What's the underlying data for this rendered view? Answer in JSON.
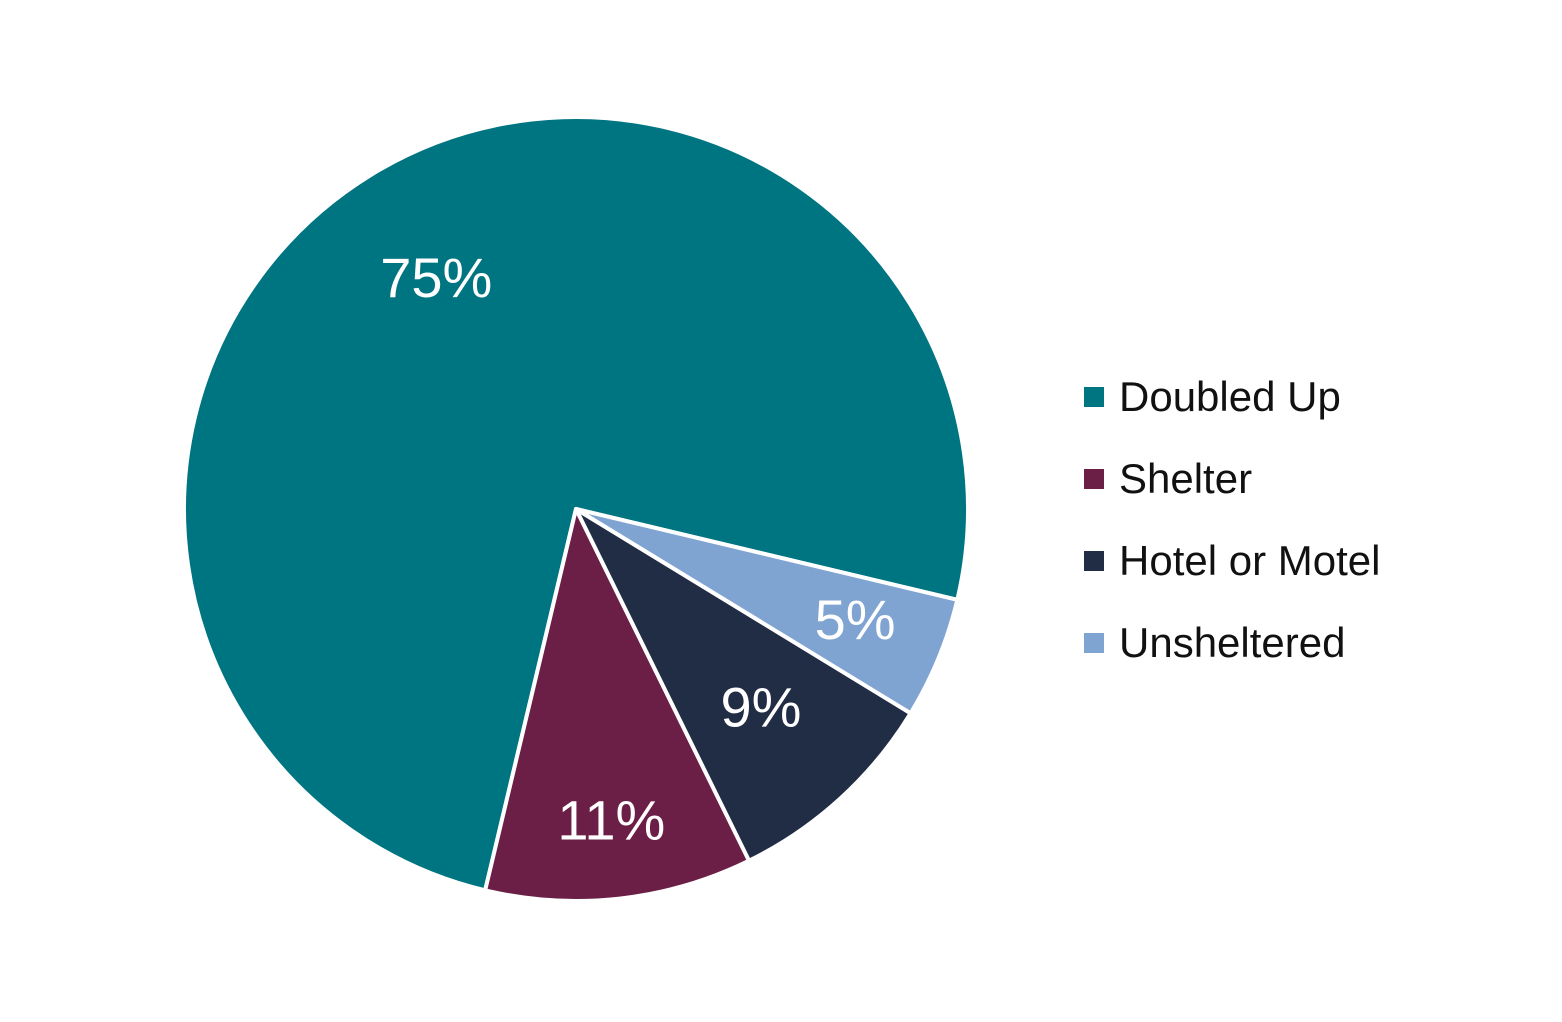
{
  "chart_data": {
    "type": "pie",
    "categories": [
      "Doubled Up",
      "Shelter",
      "Hotel or Motel",
      "Unsheltered"
    ],
    "values": [
      75,
      11,
      9,
      5
    ],
    "data_labels": [
      "75%",
      "11%",
      "9%",
      "5%"
    ],
    "colors": [
      "#007582",
      "#6b1f46",
      "#212c45",
      "#80a4d2"
    ],
    "label_color": "#ffffff",
    "legend_position": "right",
    "title": ""
  },
  "legend": {
    "items": [
      {
        "label": "Doubled Up",
        "color": "#007582"
      },
      {
        "label": "Shelter",
        "color": "#6b1f46"
      },
      {
        "label": "Hotel or Motel",
        "color": "#212c45"
      },
      {
        "label": "Unsheltered",
        "color": "#80a4d2"
      }
    ]
  }
}
